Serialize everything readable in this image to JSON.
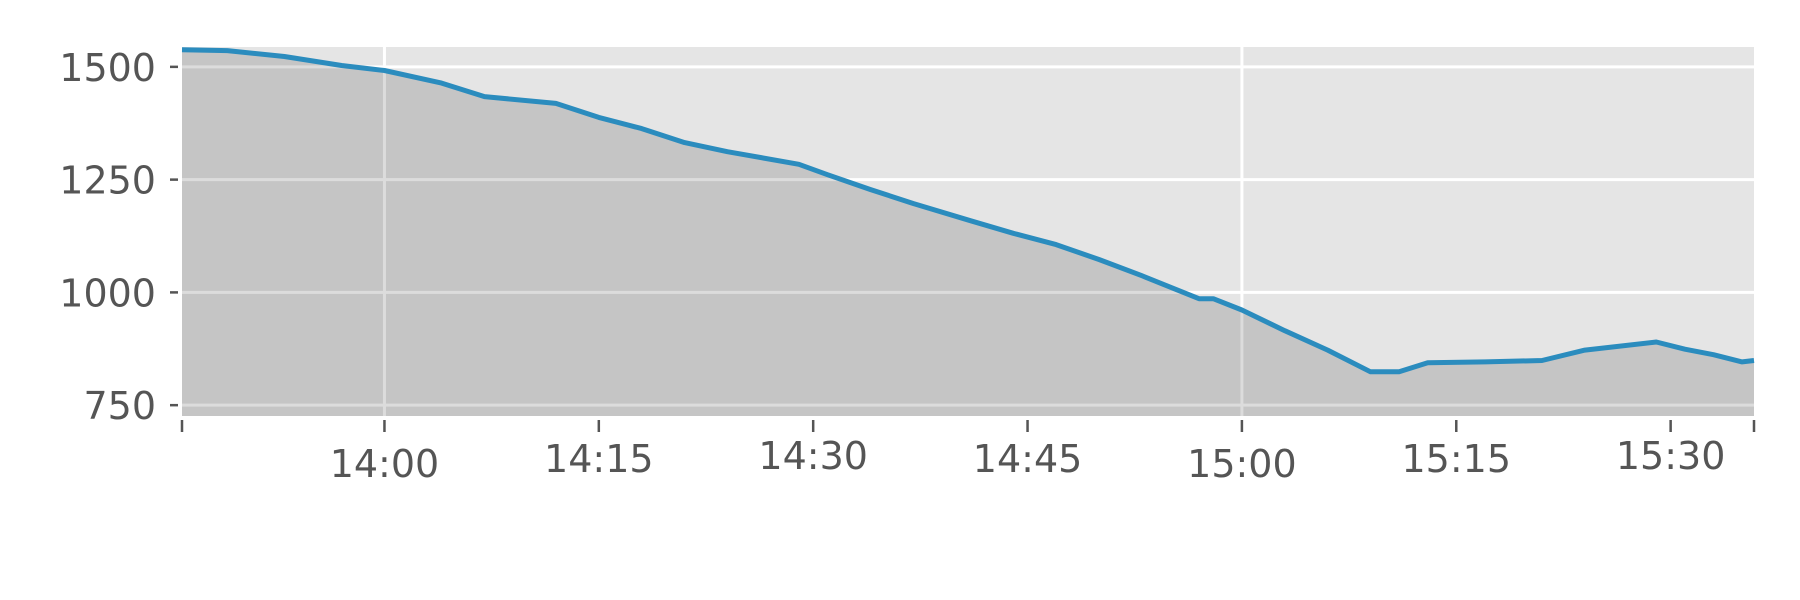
{
  "chart_data": {
    "type": "area",
    "title": "",
    "xlabel": "",
    "ylabel": "",
    "x_tick_labels": [
      "14:00",
      "14:15",
      "14:30",
      "14:45",
      "15:00",
      "15:15",
      "15:30"
    ],
    "y_tick_labels": [
      "750",
      "1000",
      "1250",
      "1500"
    ],
    "y_ticks": [
      750,
      1000,
      1250,
      1500
    ],
    "ylim": [
      726,
      1544
    ],
    "xlim": [
      "13:45:50",
      "15:35:50"
    ],
    "grid": true,
    "colors": {
      "line": "#2b8cbe",
      "fill": "#c5c5c5",
      "background": "#e5e5e5",
      "grid": "#ffffff"
    },
    "series": [
      {
        "x": [
          "13:46",
          "13:49",
          "13:53",
          "13:57",
          "14:00",
          "14:04",
          "14:07",
          "14:12",
          "14:15",
          "14:18",
          "14:21",
          "14:24",
          "14:29",
          "14:31",
          "14:34",
          "14:37",
          "14:41",
          "14:44",
          "14:47",
          "14:50",
          "14:53",
          "14:57",
          "14:58",
          "15:00",
          "15:03",
          "15:06",
          "15:09",
          "15:11",
          "15:13",
          "15:17",
          "15:21",
          "15:24",
          "15:29",
          "15:31",
          "15:33",
          "15:35",
          "15:36"
        ],
        "y": [
          1538,
          1536,
          1523,
          1503,
          1492,
          1464,
          1434,
          1419,
          1388,
          1363,
          1332,
          1312,
          1284,
          1261,
          1228,
          1197,
          1159,
          1131,
          1106,
          1073,
          1037,
          986,
          986,
          961,
          915,
          872,
          824,
          824,
          844,
          846,
          849,
          872,
          890,
          874,
          862,
          846,
          849
        ]
      }
    ]
  }
}
